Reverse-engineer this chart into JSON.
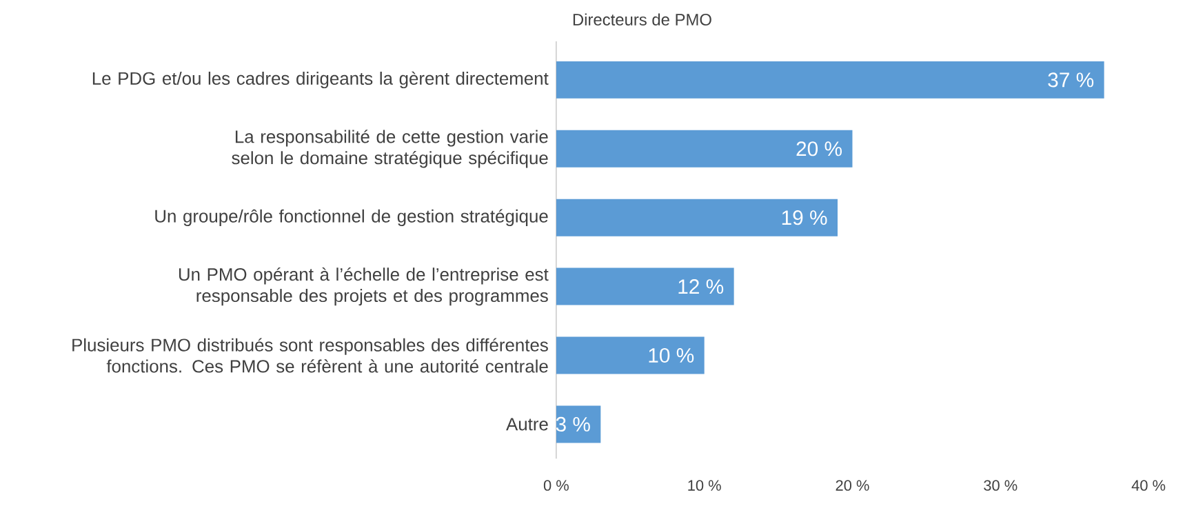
{
  "chart_data": {
    "type": "bar",
    "orientation": "horizontal",
    "title": "Directeurs de PMO",
    "categories": [
      "Le PDG et/ou les cadres dirigeants la gèrent directement",
      "La responsabilité de cette gestion varie selon le domaine stratégique spécifique",
      "Un groupe/rôle fonctionnel de gestion stratégique",
      "Un PMO opérant à l’échelle de l’entreprise est responsable des projets et des programmes",
      "Plusieurs PMO distribués sont responsables des différentes fonctions. Ces PMO se réfèrent à une autorité centrale",
      "Autre"
    ],
    "values": [
      37,
      20,
      19,
      12,
      10,
      3
    ],
    "value_labels": [
      "37 %",
      "20 %",
      "19 %",
      "12 %",
      "10 %",
      "3 %"
    ],
    "color": "#5b9bd5",
    "xlim": [
      0,
      40
    ],
    "xticks": [
      {
        "value": 0,
        "label": "0 %"
      },
      {
        "value": 10,
        "label": "10 %"
      },
      {
        "value": 20,
        "label": "20 %"
      },
      {
        "value": 30,
        "label": "30 %"
      },
      {
        "value": 40,
        "label": "40 %"
      }
    ],
    "grid": false
  }
}
